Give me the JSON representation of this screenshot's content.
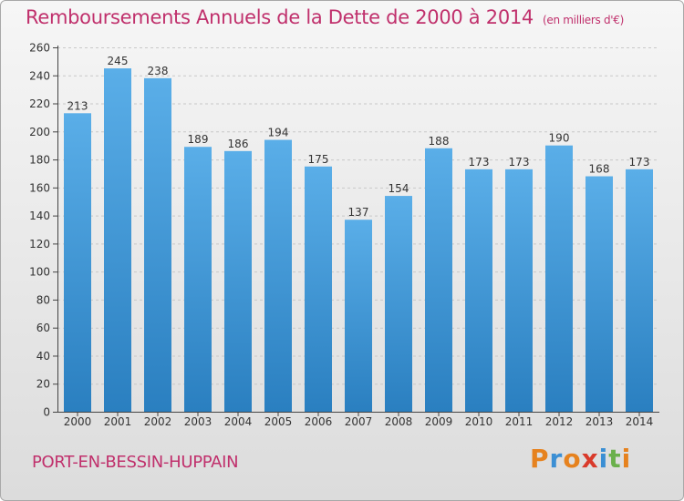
{
  "title": "Remboursements Annuels de la Dette de 2000 à 2014",
  "subtitle": "(en milliers d'€)",
  "commune": "PORT-EN-BESSIN-HUPPAIN",
  "brand": {
    "letters": [
      "P",
      "r",
      "o",
      "x",
      "i",
      "t",
      "i"
    ],
    "colors": [
      "#e6821e",
      "#3b8fd4",
      "#e6821e",
      "#d93a2b",
      "#3b8fd4",
      "#6ab04c",
      "#e6821e"
    ]
  },
  "colors": {
    "title": "#c0306c",
    "bar_top": "#5aaee8",
    "bar_bottom": "#2a7fc0"
  },
  "chart_data": {
    "type": "bar",
    "categories": [
      "2000",
      "2001",
      "2002",
      "2003",
      "2004",
      "2005",
      "2006",
      "2007",
      "2008",
      "2009",
      "2010",
      "2011",
      "2012",
      "2013",
      "2014"
    ],
    "values": [
      213,
      245,
      238,
      189,
      186,
      194,
      175,
      137,
      154,
      188,
      173,
      173,
      190,
      168,
      173
    ],
    "ylim": [
      0,
      260
    ],
    "yticks": [
      0,
      20,
      40,
      60,
      80,
      100,
      120,
      140,
      160,
      180,
      200,
      220,
      240,
      260
    ],
    "grid": true,
    "xlabel": "",
    "ylabel": ""
  }
}
